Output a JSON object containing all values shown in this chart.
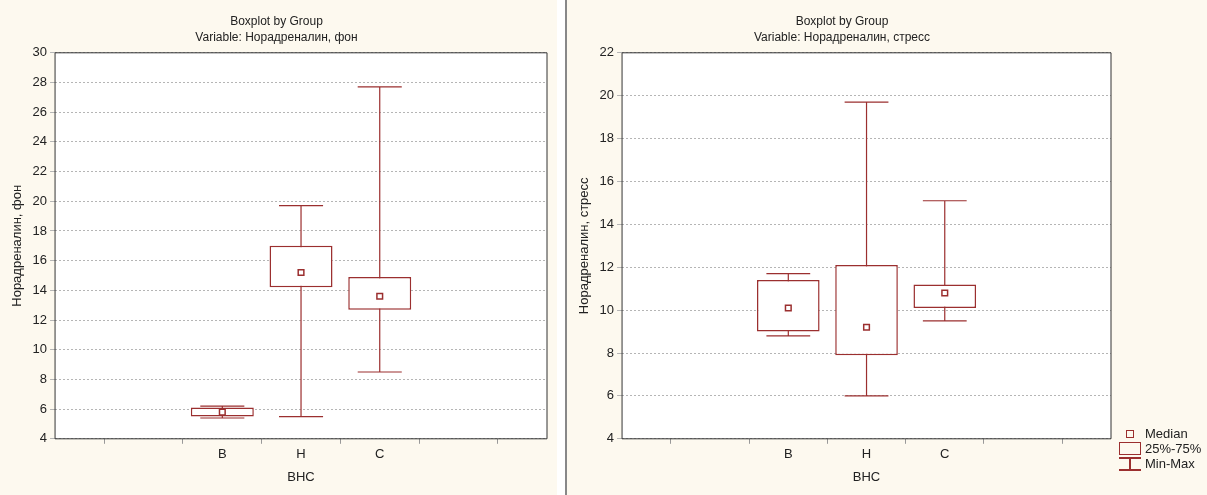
{
  "chart_data": [
    {
      "type": "box",
      "title": "Boxplot by Group",
      "subtitle": "Variable: Норадреналин, фон",
      "xlabel": "ВНС",
      "ylabel": "Норадреналин, фон",
      "categories": [
        null,
        "В",
        "Н",
        "С",
        null
      ],
      "color": "#9b2f2f",
      "marker": "square",
      "ylim": [
        4,
        30
      ],
      "yticks": [
        4,
        6,
        8,
        10,
        12,
        14,
        16,
        18,
        20,
        22,
        24,
        26,
        28,
        30
      ],
      "grid": "y",
      "boxes": [
        null,
        {
          "low": 5.4,
          "q1": 5.5,
          "median": 5.8,
          "q3": 6.1,
          "high": 6.2
        },
        {
          "low": 5.5,
          "q1": 14.2,
          "median": 15.2,
          "q3": 17.0,
          "high": 19.7
        },
        {
          "low": 8.5,
          "q1": 12.7,
          "median": 13.6,
          "q3": 14.9,
          "high": 27.7
        },
        null
      ]
    },
    {
      "type": "box",
      "title": "Boxplot by Group",
      "subtitle": "Variable: Норадреналин, стресс",
      "xlabel": "ВНС",
      "ylabel": "Норадреналин, стресс",
      "categories": [
        null,
        "В",
        "Н",
        "С",
        null
      ],
      "color": "#9b2f2f",
      "marker": "square",
      "ylim": [
        4,
        22
      ],
      "yticks": [
        4,
        6,
        8,
        10,
        12,
        14,
        16,
        18,
        20,
        22
      ],
      "grid": "y",
      "annotations": [
        "Median",
        "25%-75%",
        "Min-Max"
      ],
      "boxes": [
        null,
        {
          "low": 8.8,
          "q1": 9.0,
          "median": 10.1,
          "q3": 11.4,
          "high": 11.7
        },
        {
          "low": 6.0,
          "q1": 7.9,
          "median": 9.2,
          "q3": 12.1,
          "high": 19.7
        },
        {
          "low": 9.5,
          "q1": 10.1,
          "median": 10.8,
          "q3": 11.2,
          "high": 15.1
        },
        null
      ]
    }
  ]
}
